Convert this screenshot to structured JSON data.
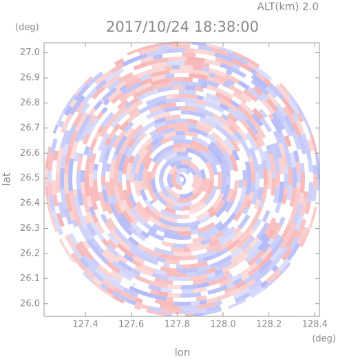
{
  "chart_data": {
    "type": "radar-image",
    "title": "2017/10/24 18:38:00",
    "altitude_label": "ALT(km) 2.0",
    "y_unit": "(deg)",
    "x_unit": "(deg)",
    "xlabel": "lon",
    "ylabel": "lat",
    "xlim": [
      127.22,
      128.42
    ],
    "xticks": [
      127.4,
      127.6,
      127.8,
      {
        "value": 128,
        "label": "128.0"
      },
      128.2,
      128.4
    ],
    "ylim": [
      25.95,
      27.04
    ],
    "yticks": [
      {
        "value": 26,
        "label": "26.0"
      },
      26.1,
      26.2,
      26.3,
      26.4,
      26.5,
      26.6,
      26.7,
      26.8,
      26.9,
      {
        "value": 27,
        "label": "27.0"
      }
    ]
  }
}
